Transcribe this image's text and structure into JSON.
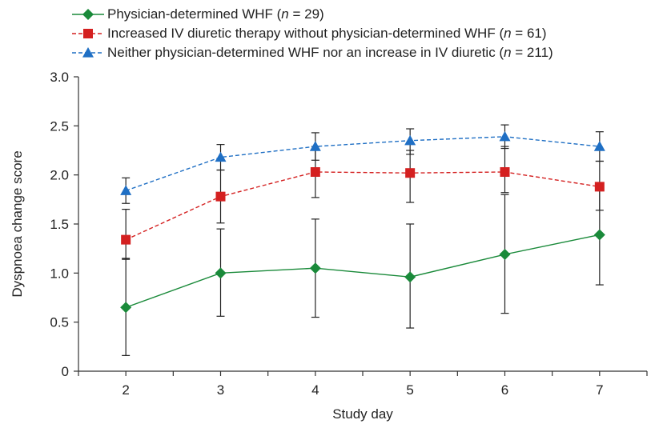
{
  "chart_data": {
    "type": "line",
    "xlabel": "Study day",
    "ylabel": "Dyspnoea change score",
    "x": [
      2,
      3,
      4,
      5,
      6,
      7
    ],
    "xlim": [
      1.5,
      7.5
    ],
    "ylim": [
      0,
      3.0
    ],
    "yticks": [
      "0",
      "0.5",
      "1.0",
      "1.5",
      "2.0",
      "2.5",
      "3.0"
    ],
    "xticks": [
      "2",
      "3",
      "4",
      "5",
      "6",
      "7"
    ],
    "grid": false,
    "legend_position": "top-left",
    "series": [
      {
        "key": "whf",
        "legend_prefix": "Physician-determined WHF (",
        "legend_n": "n",
        "legend_suffix": " = 29)",
        "color": "#1a8a3a",
        "marker": "diamond",
        "linestyle": "solid",
        "values": [
          0.65,
          1.0,
          1.05,
          0.96,
          1.19,
          1.39
        ],
        "error_low": [
          0.16,
          0.56,
          0.55,
          0.44,
          0.59,
          0.88
        ],
        "error_high": [
          1.15,
          1.45,
          1.55,
          1.5,
          1.8,
          1.9
        ]
      },
      {
        "key": "diuretic",
        "legend_prefix": "Increased IV diuretic therapy without physician-determined WHF (",
        "legend_n": "n",
        "legend_suffix": " = 61)",
        "color": "#d42020",
        "marker": "square",
        "linestyle": "dashed",
        "values": [
          1.34,
          1.78,
          2.03,
          2.02,
          2.03,
          1.88
        ],
        "error_low": [
          1.14,
          1.51,
          1.77,
          1.72,
          1.82,
          1.64
        ],
        "error_high": [
          1.65,
          2.05,
          2.29,
          2.25,
          2.29,
          2.14
        ]
      },
      {
        "key": "neither",
        "legend_prefix": "Neither physician-determined WHF nor an increase in IV diuretic (",
        "legend_n": "n",
        "legend_suffix": " = 211)",
        "color": "#1f6fc4",
        "marker": "triangle",
        "linestyle": "dashed",
        "values": [
          1.84,
          2.18,
          2.29,
          2.35,
          2.39,
          2.29
        ],
        "error_low": [
          1.71,
          2.05,
          2.15,
          2.21,
          2.27,
          2.14
        ],
        "error_high": [
          1.97,
          2.31,
          2.43,
          2.47,
          2.51,
          2.44
        ]
      }
    ]
  }
}
